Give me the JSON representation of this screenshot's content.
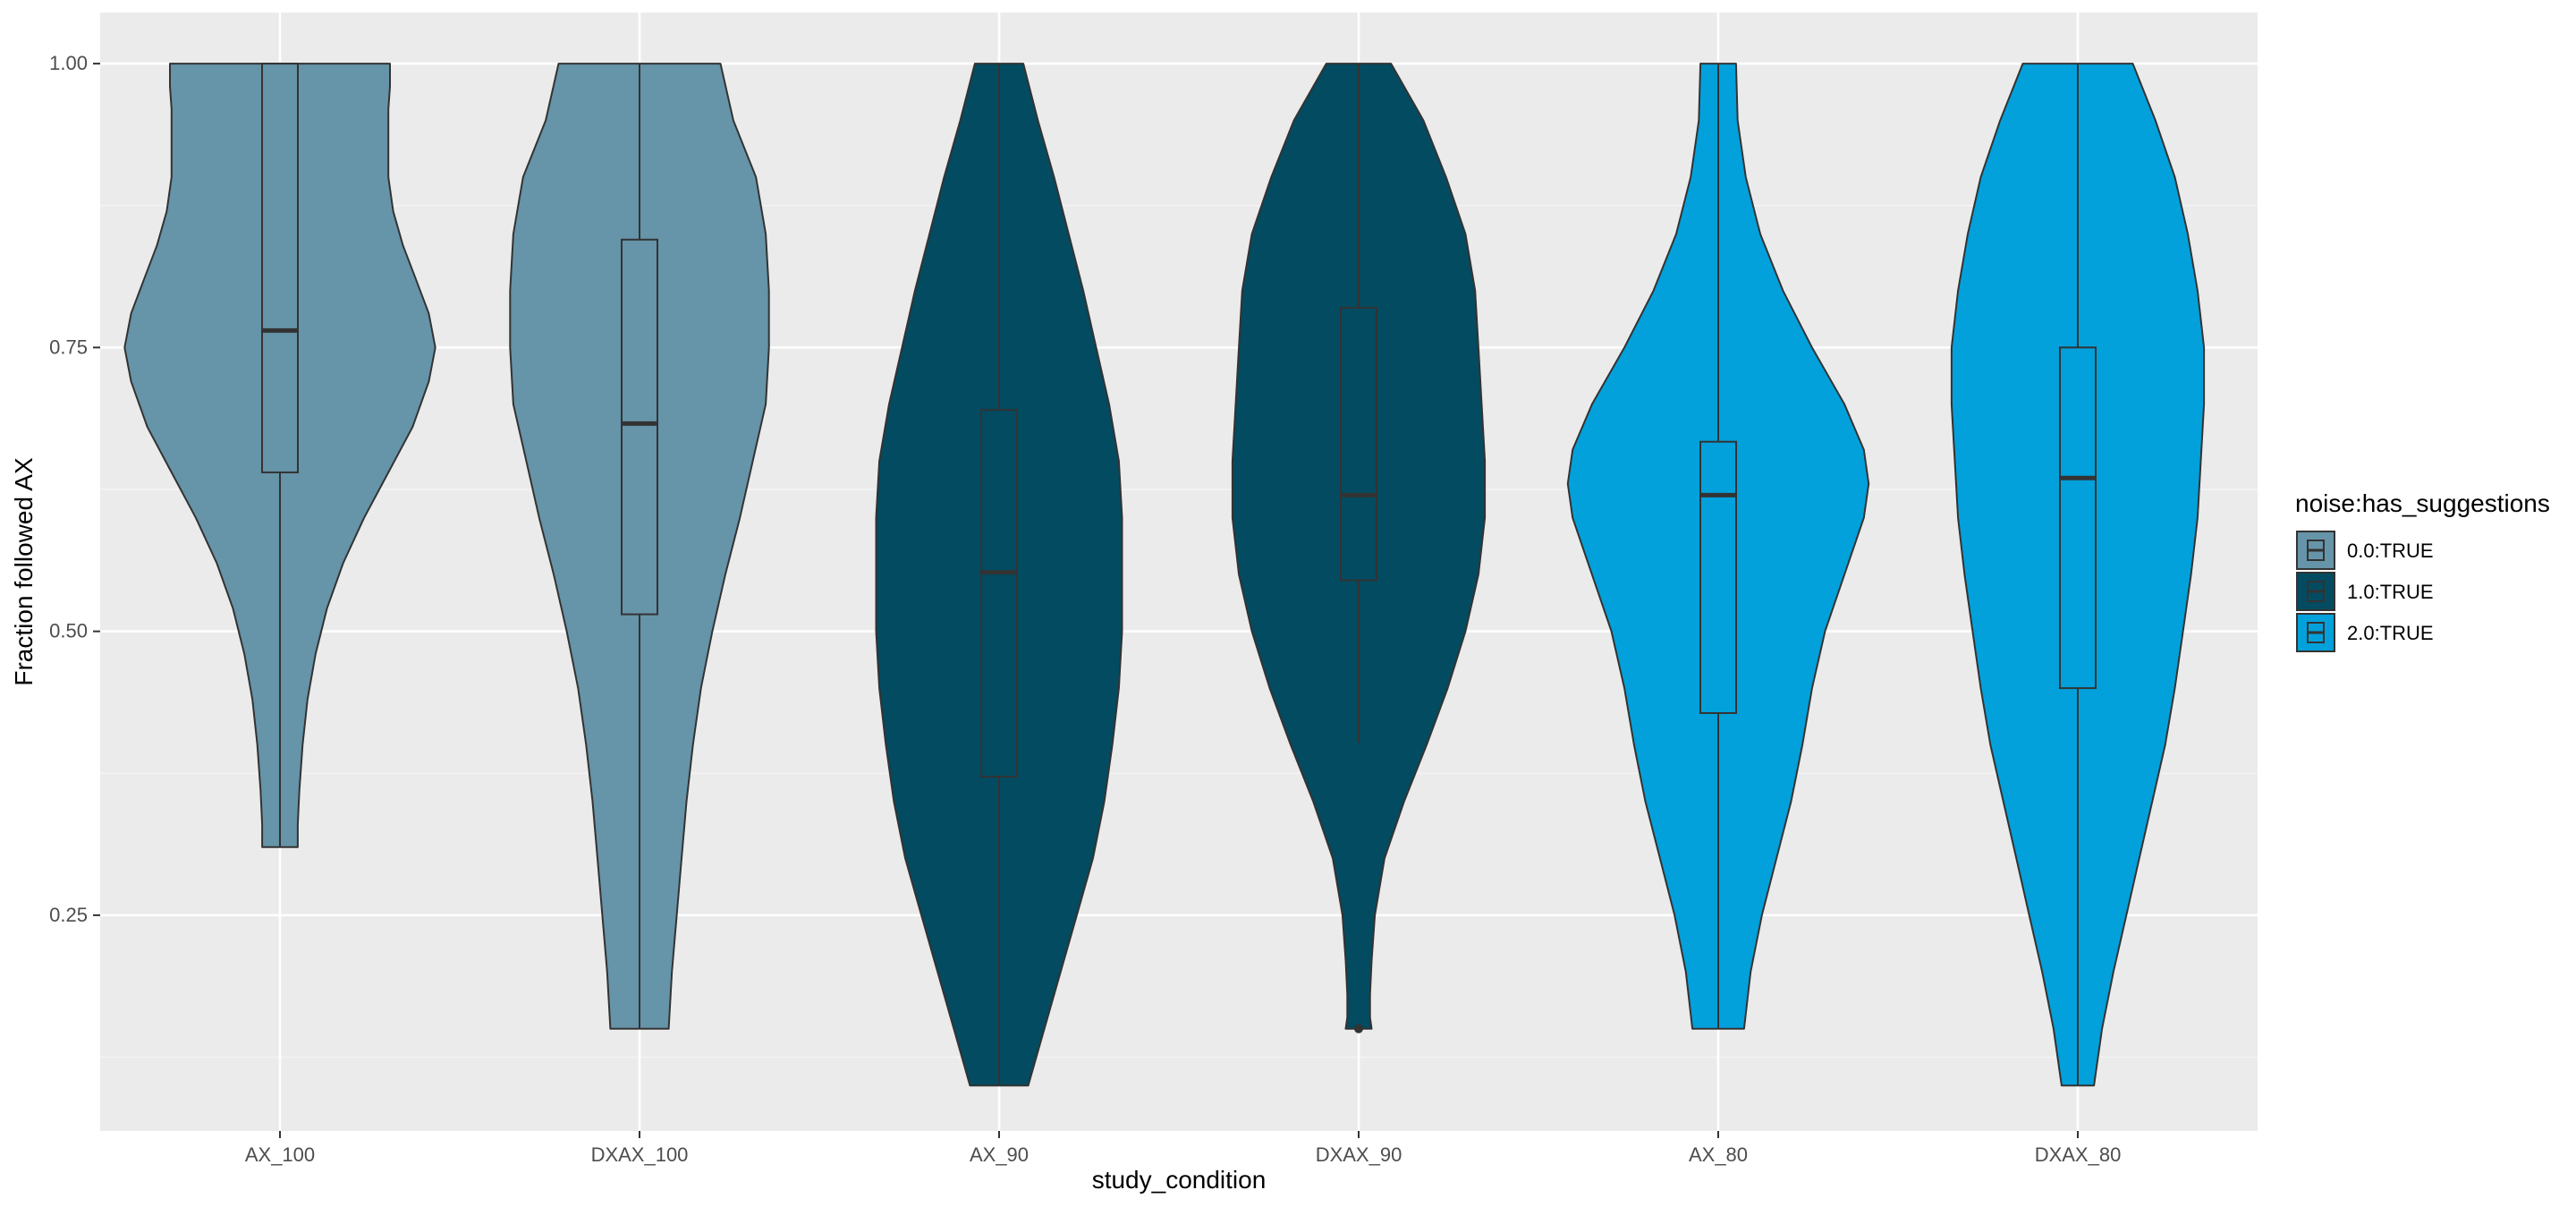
{
  "chart_data": {
    "type": "violin",
    "title": "",
    "xlabel": "study_condition",
    "ylabel": "Fraction followed AX",
    "ylim": [
      0.06,
      1.045
    ],
    "y_ticks": [
      0.25,
      0.5,
      0.75,
      1.0
    ],
    "y_tick_labels": [
      "0.25",
      "0.50",
      "0.75",
      "1.00"
    ],
    "grid": true,
    "legend": {
      "title": "noise:has_suggestions",
      "position": "right",
      "entries": [
        {
          "label": "0.0:TRUE",
          "color": "#6694a8"
        },
        {
          "label": "1.0:TRUE",
          "color": "#034b61"
        },
        {
          "label": "2.0:TRUE",
          "color": "#02a1dc"
        }
      ]
    },
    "categories": [
      "AX_100",
      "DXAX_100",
      "AX_90",
      "DXAX_90",
      "AX_80",
      "DXAX_80"
    ],
    "groups": [
      {
        "category": "AX_100",
        "series": "0.0:TRUE",
        "color": "#6694a8",
        "box": {
          "min": 0.31,
          "q1": 0.64,
          "median": 0.765,
          "q3": 1.0,
          "max": 1.0
        },
        "outliers": [],
        "density": [
          [
            0.31,
            0.11
          ],
          [
            0.33,
            0.11
          ],
          [
            0.36,
            0.12
          ],
          [
            0.4,
            0.14
          ],
          [
            0.44,
            0.17
          ],
          [
            0.48,
            0.22
          ],
          [
            0.52,
            0.29
          ],
          [
            0.56,
            0.39
          ],
          [
            0.6,
            0.52
          ],
          [
            0.64,
            0.67
          ],
          [
            0.68,
            0.82
          ],
          [
            0.72,
            0.92
          ],
          [
            0.75,
            0.96
          ],
          [
            0.78,
            0.92
          ],
          [
            0.81,
            0.84
          ],
          [
            0.84,
            0.76
          ],
          [
            0.87,
            0.7
          ],
          [
            0.9,
            0.67
          ],
          [
            0.93,
            0.67
          ],
          [
            0.96,
            0.67
          ],
          [
            0.98,
            0.68
          ],
          [
            1.0,
            0.68
          ]
        ]
      },
      {
        "category": "DXAX_100",
        "series": "0.0:TRUE",
        "color": "#6694a8",
        "box": {
          "min": 0.15,
          "q1": 0.515,
          "median": 0.683,
          "q3": 0.845,
          "max": 1.0
        },
        "outliers": [],
        "density": [
          [
            0.15,
            0.18
          ],
          [
            0.2,
            0.2
          ],
          [
            0.25,
            0.23
          ],
          [
            0.3,
            0.26
          ],
          [
            0.35,
            0.29
          ],
          [
            0.4,
            0.33
          ],
          [
            0.45,
            0.38
          ],
          [
            0.5,
            0.45
          ],
          [
            0.55,
            0.53
          ],
          [
            0.6,
            0.62
          ],
          [
            0.65,
            0.7
          ],
          [
            0.7,
            0.78
          ],
          [
            0.75,
            0.8
          ],
          [
            0.8,
            0.8
          ],
          [
            0.85,
            0.78
          ],
          [
            0.9,
            0.72
          ],
          [
            0.95,
            0.58
          ],
          [
            1.0,
            0.5
          ]
        ]
      },
      {
        "category": "AX_90",
        "series": "1.0:TRUE",
        "color": "#034b61",
        "box": {
          "min": 0.1,
          "q1": 0.372,
          "median": 0.552,
          "q3": 0.695,
          "max": 1.0
        },
        "outliers": [],
        "density": [
          [
            0.1,
            0.18
          ],
          [
            0.14,
            0.26
          ],
          [
            0.18,
            0.34
          ],
          [
            0.22,
            0.42
          ],
          [
            0.26,
            0.5
          ],
          [
            0.3,
            0.58
          ],
          [
            0.35,
            0.65
          ],
          [
            0.4,
            0.7
          ],
          [
            0.45,
            0.74
          ],
          [
            0.5,
            0.76
          ],
          [
            0.55,
            0.76
          ],
          [
            0.6,
            0.76
          ],
          [
            0.65,
            0.74
          ],
          [
            0.7,
            0.68
          ],
          [
            0.75,
            0.6
          ],
          [
            0.8,
            0.52
          ],
          [
            0.85,
            0.43
          ],
          [
            0.9,
            0.34
          ],
          [
            0.95,
            0.24
          ],
          [
            1.0,
            0.15
          ]
        ]
      },
      {
        "category": "DXAX_90",
        "series": "1.0:TRUE",
        "color": "#034b61",
        "box": {
          "min": 0.402,
          "q1": 0.545,
          "median": 0.62,
          "q3": 0.785,
          "max": 1.0
        },
        "outliers": [
          0.15
        ],
        "density": [
          [
            0.15,
            0.08
          ],
          [
            0.16,
            0.07
          ],
          [
            0.18,
            0.07
          ],
          [
            0.21,
            0.08
          ],
          [
            0.25,
            0.1
          ],
          [
            0.3,
            0.16
          ],
          [
            0.35,
            0.28
          ],
          [
            0.4,
            0.42
          ],
          [
            0.45,
            0.55
          ],
          [
            0.5,
            0.66
          ],
          [
            0.55,
            0.74
          ],
          [
            0.6,
            0.78
          ],
          [
            0.65,
            0.78
          ],
          [
            0.7,
            0.76
          ],
          [
            0.75,
            0.74
          ],
          [
            0.8,
            0.72
          ],
          [
            0.85,
            0.66
          ],
          [
            0.9,
            0.54
          ],
          [
            0.95,
            0.4
          ],
          [
            1.0,
            0.2
          ]
        ]
      },
      {
        "category": "AX_80",
        "series": "2.0:TRUE",
        "color": "#02a1dc",
        "box": {
          "min": 0.15,
          "q1": 0.428,
          "median": 0.62,
          "q3": 0.667,
          "max": 1.0
        },
        "outliers": [],
        "density": [
          [
            0.15,
            0.16
          ],
          [
            0.2,
            0.2
          ],
          [
            0.25,
            0.27
          ],
          [
            0.3,
            0.36
          ],
          [
            0.35,
            0.45
          ],
          [
            0.4,
            0.52
          ],
          [
            0.45,
            0.58
          ],
          [
            0.5,
            0.66
          ],
          [
            0.55,
            0.78
          ],
          [
            0.6,
            0.9
          ],
          [
            0.63,
            0.93
          ],
          [
            0.66,
            0.9
          ],
          [
            0.7,
            0.78
          ],
          [
            0.75,
            0.58
          ],
          [
            0.8,
            0.4
          ],
          [
            0.85,
            0.26
          ],
          [
            0.9,
            0.17
          ],
          [
            0.95,
            0.12
          ],
          [
            1.0,
            0.11
          ]
        ]
      },
      {
        "category": "DXAX_80",
        "series": "2.0:TRUE",
        "color": "#02a1dc",
        "box": {
          "min": 0.1,
          "q1": 0.45,
          "median": 0.635,
          "q3": 0.75,
          "max": 1.0
        },
        "outliers": [],
        "density": [
          [
            0.1,
            0.1
          ],
          [
            0.15,
            0.15
          ],
          [
            0.2,
            0.22
          ],
          [
            0.25,
            0.3
          ],
          [
            0.3,
            0.38
          ],
          [
            0.35,
            0.46
          ],
          [
            0.4,
            0.54
          ],
          [
            0.45,
            0.6
          ],
          [
            0.5,
            0.65
          ],
          [
            0.55,
            0.7
          ],
          [
            0.6,
            0.74
          ],
          [
            0.65,
            0.76
          ],
          [
            0.7,
            0.78
          ],
          [
            0.75,
            0.78
          ],
          [
            0.8,
            0.74
          ],
          [
            0.85,
            0.68
          ],
          [
            0.9,
            0.6
          ],
          [
            0.95,
            0.48
          ],
          [
            1.0,
            0.34
          ]
        ]
      }
    ]
  }
}
